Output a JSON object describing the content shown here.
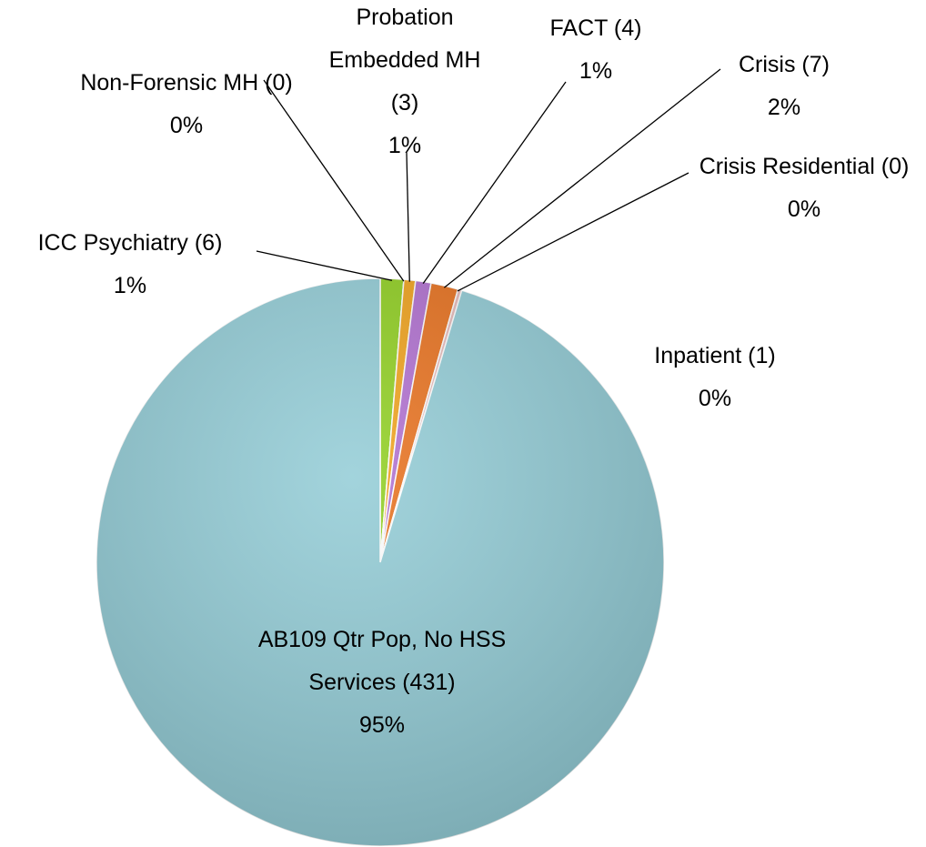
{
  "chart_data": {
    "type": "pie",
    "categories": [
      "ICC Psychiatry (6)",
      "Non-Forensic MH (0)",
      "Probation Embedded MH (3)",
      "FACT  (4)",
      "Crisis (7)",
      "Crisis Residential (0)",
      "Inpatient (1)",
      "AB109 Qtr Pop, No HSS Services (431)"
    ],
    "values": [
      1.33,
      0,
      0.66,
      0.88,
      1.55,
      0,
      0.22,
      95.35
    ],
    "value_labels": [
      "1%",
      "0%",
      "1%",
      "1%",
      "2%",
      "0%",
      "0%",
      "95%"
    ],
    "colors": [
      "#8fcf1f",
      "#5b9bd5",
      "#f0a21a",
      "#b06fd0",
      "#e8701c",
      "#c0504d",
      "#e6b9b8",
      "#92ccd6"
    ]
  }
}
